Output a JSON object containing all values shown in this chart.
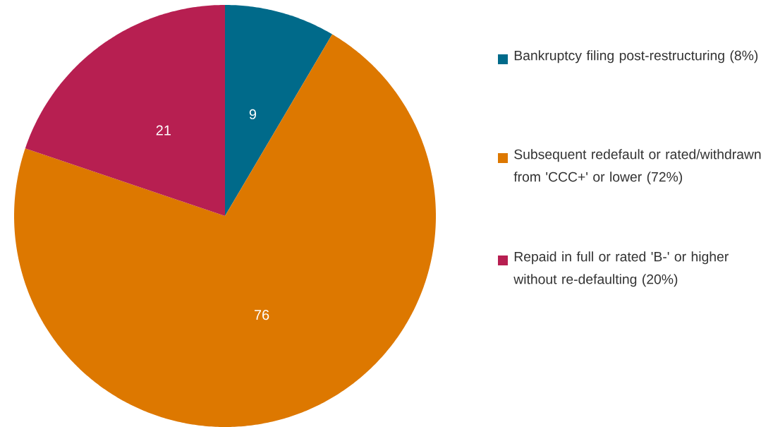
{
  "chart_data": {
    "type": "pie",
    "categories": [
      "Bankruptcy filing post-restructuring (8%)",
      "Subsequent redefault or rated/withdrawn from 'CCC+' or lower (72%)",
      "Repaid in full or rated 'B-' or higher without re-defaulting (20%)"
    ],
    "values": [
      9,
      76,
      21
    ],
    "colors": [
      "#006a8a",
      "#dd7800",
      "#b71f51"
    ],
    "data_labels": true,
    "legend": "right"
  }
}
